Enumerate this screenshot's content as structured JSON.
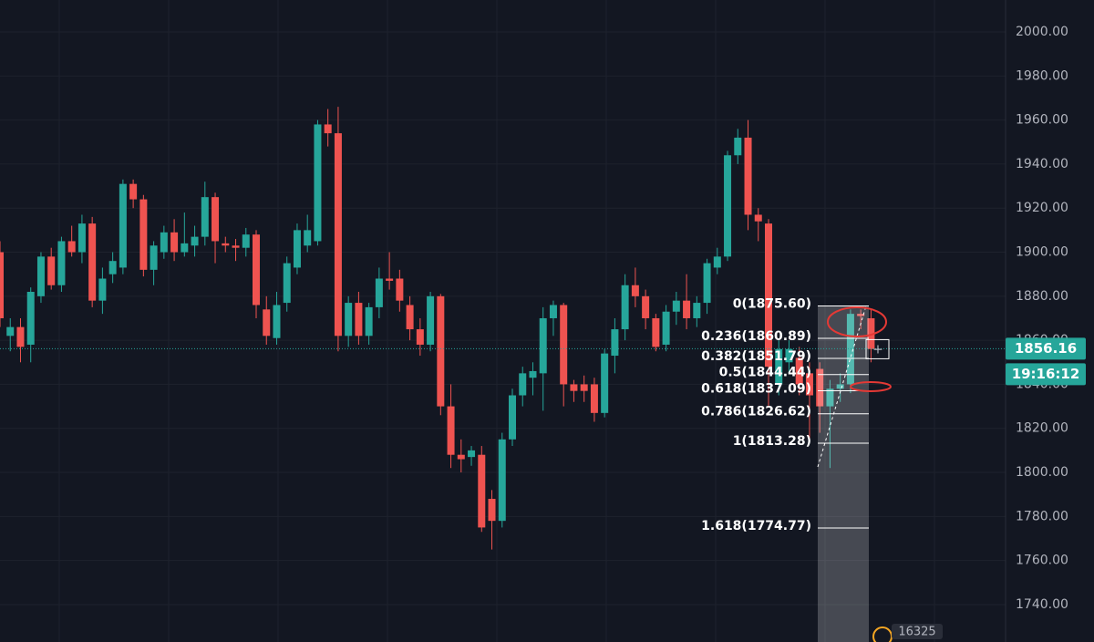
{
  "chart_data": {
    "type": "candlestick",
    "ylim": [
      1723,
      2014.5
    ],
    "yticks": [
      {
        "value": 1740,
        "label": "1740.00"
      },
      {
        "value": 1760,
        "label": "1760.00"
      },
      {
        "value": 1780,
        "label": "1780.00"
      },
      {
        "value": 1800,
        "label": "1800.00"
      },
      {
        "value": 1820,
        "label": "1820.00"
      },
      {
        "value": 1840,
        "label": "1840.00"
      },
      {
        "value": 1860,
        "label": "1860.00"
      },
      {
        "value": 1880,
        "label": "1880.00"
      },
      {
        "value": 1900,
        "label": "1900.00"
      },
      {
        "value": 1920,
        "label": "1920.00"
      },
      {
        "value": 1940,
        "label": "1940.00"
      },
      {
        "value": 1960,
        "label": "1960.00"
      },
      {
        "value": 1980,
        "label": "1980.00"
      },
      {
        "value": 2000,
        "label": "2000.00"
      }
    ],
    "grid": true,
    "up_color": "#26a69a",
    "down_color": "#ef5350",
    "series": {
      "open": [
        1900,
        1862,
        1866,
        1858,
        1880,
        1898,
        1885,
        1905,
        1900,
        1913,
        1878,
        1890,
        1893,
        1931,
        1924,
        1892,
        1900,
        1909,
        1900,
        1903,
        1907,
        1925,
        1904,
        1903,
        1902,
        1908,
        1874,
        1861,
        1877,
        1893,
        1903,
        1905,
        1958,
        1954,
        1862,
        1877,
        1862,
        1875,
        1888,
        1888,
        1876,
        1865,
        1858,
        1880,
        1830,
        1808,
        1807,
        1808,
        1788,
        1778,
        1815,
        1835,
        1843,
        1845,
        1870,
        1876,
        1840,
        1840,
        1840,
        1827,
        1853,
        1865,
        1885,
        1880,
        1870,
        1858,
        1873,
        1878,
        1870,
        1877,
        1893,
        1898,
        1944,
        1952,
        1917,
        1913,
        1840,
        1850,
        1852,
        1845,
        1847,
        1830,
        1838,
        1840,
        1872,
        1870
      ],
      "high": [
        1905,
        1870,
        1870,
        1884,
        1900,
        1902,
        1907,
        1912,
        1917,
        1916,
        1893,
        1900,
        1933,
        1933,
        1926,
        1905,
        1912,
        1915,
        1918,
        1912,
        1932,
        1927,
        1907,
        1906,
        1911,
        1910,
        1880,
        1882,
        1898,
        1913,
        1917,
        1960,
        1965,
        1966,
        1880,
        1882,
        1877,
        1893,
        1900,
        1892,
        1880,
        1870,
        1882,
        1881,
        1840,
        1815,
        1812,
        1812,
        1792,
        1818,
        1838,
        1848,
        1850,
        1875,
        1878,
        1877,
        1842,
        1844,
        1843,
        1856,
        1870,
        1890,
        1893,
        1883,
        1872,
        1876,
        1882,
        1890,
        1880,
        1897,
        1902,
        1946,
        1956,
        1960,
        1920,
        1915,
        1860,
        1860,
        1857,
        1850,
        1850,
        1842,
        1845,
        1874,
        1874,
        1874
      ],
      "low": [
        1866,
        1855,
        1850,
        1850,
        1877,
        1883,
        1882,
        1898,
        1895,
        1875,
        1872,
        1886,
        1890,
        1920,
        1889,
        1885,
        1897,
        1896,
        1898,
        1898,
        1903,
        1895,
        1900,
        1896,
        1898,
        1870,
        1858,
        1858,
        1873,
        1890,
        1900,
        1903,
        1948,
        1855,
        1857,
        1858,
        1858,
        1870,
        1883,
        1873,
        1860,
        1853,
        1855,
        1826,
        1802,
        1800,
        1803,
        1773,
        1765,
        1775,
        1812,
        1830,
        1835,
        1828,
        1862,
        1830,
        1832,
        1832,
        1823,
        1825,
        1845,
        1860,
        1875,
        1865,
        1855,
        1855,
        1867,
        1865,
        1866,
        1872,
        1890,
        1896,
        1940,
        1910,
        1905,
        1830,
        1835,
        1845,
        1835,
        1815,
        1818,
        1802,
        1832,
        1836,
        1865,
        1850
      ],
      "close": [
        1870,
        1866,
        1857,
        1882,
        1898,
        1885,
        1905,
        1900,
        1913,
        1878,
        1888,
        1896,
        1931,
        1924,
        1892,
        1903,
        1909,
        1900,
        1904,
        1907,
        1925,
        1905,
        1903,
        1902,
        1908,
        1876,
        1862,
        1876,
        1895,
        1910,
        1910,
        1958,
        1954,
        1862,
        1877,
        1862,
        1875,
        1888,
        1887,
        1878,
        1865,
        1858,
        1880,
        1830,
        1808,
        1806,
        1810,
        1775,
        1778,
        1815,
        1835,
        1845,
        1846,
        1870,
        1876,
        1840,
        1837,
        1837,
        1827,
        1854,
        1865,
        1885,
        1880,
        1870,
        1857,
        1873,
        1878,
        1870,
        1877,
        1895,
        1898,
        1944,
        1952,
        1917,
        1914,
        1848,
        1856,
        1856,
        1840,
        1835,
        1830,
        1838,
        1840,
        1872,
        1871,
        1856
      ]
    },
    "fib_levels": [
      {
        "price": 1875.6,
        "label": "0(1875.60)"
      },
      {
        "price": 1860.89,
        "label": "0.236(1860.89)"
      },
      {
        "price": 1851.79,
        "label": "0.382(1851.79)"
      },
      {
        "price": 1844.44,
        "label": "0.5(1844.44)"
      },
      {
        "price": 1837.09,
        "label": "0.618(1837.09)"
      },
      {
        "price": 1826.62,
        "label": "0.786(1826.62)"
      },
      {
        "price": 1813.28,
        "label": "1(1813.28)"
      },
      {
        "price": 1774.77,
        "label": "1.618(1774.77)"
      }
    ],
    "last_price": {
      "value": 1856.16,
      "label": "1856.16"
    },
    "countdown": "19:16:12",
    "badge": "16325"
  }
}
